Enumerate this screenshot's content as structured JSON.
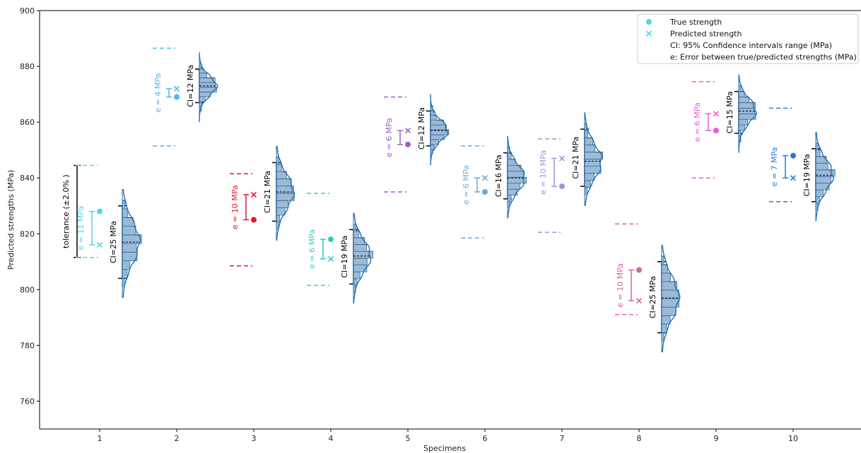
{
  "chart_data": {
    "type": "scatter",
    "xlabel": "Specimens",
    "ylabel": "Predicted strengths (MPa)",
    "ylim": [
      750,
      900
    ],
    "yticks": [
      760,
      780,
      800,
      820,
      840,
      860,
      880,
      900
    ],
    "categories": [
      "1",
      "2",
      "3",
      "4",
      "5",
      "6",
      "7",
      "8",
      "9",
      "10"
    ],
    "tolerance_label": "tolerance (±2.0% )",
    "legend": {
      "placement": "top-right",
      "entries": [
        {
          "marker": "circle",
          "label": "True strength"
        },
        {
          "marker": "x",
          "label": "Predicted strength"
        },
        {
          "marker": "none",
          "label": "CI: 95% Confidence intervals range (MPa)"
        },
        {
          "marker": "none",
          "label": "e: Error between true/predicted strengths (MPa)"
        }
      ]
    },
    "specimens": [
      {
        "x": 1,
        "color": "#4fd6ec",
        "true": 828,
        "pred": 816,
        "tol": [
          811.5,
          844.5
        ],
        "ci": [
          804,
          830
        ],
        "ci_label": "CI=25 MPa",
        "e_label": "e = 11 MPa",
        "mean": 817
      },
      {
        "x": 2,
        "color": "#4fb8ea",
        "true": 869,
        "pred": 872,
        "tol": [
          851.5,
          886.5
        ],
        "ci": [
          867,
          879
        ],
        "ci_label": "CI=12 MPa",
        "e_label": "e = 4 MPa",
        "mean": 873
      },
      {
        "x": 3,
        "color": "#e8162e",
        "true": 825,
        "pred": 834,
        "tol": [
          808.5,
          841.5
        ],
        "ci": [
          824.5,
          845.5
        ],
        "ci_label": "CI=21 MPa",
        "e_label": "e = 10 MPa",
        "mean": 835
      },
      {
        "x": 4,
        "color": "#2ecfc2",
        "true": 818,
        "pred": 811,
        "tol": [
          801.5,
          834.5
        ],
        "ci": [
          802,
          821.5
        ],
        "ci_label": "CI=19 MPa",
        "e_label": "e = 6 MPa",
        "mean": 812
      },
      {
        "x": 5,
        "color": "#a25cc9",
        "true": 852,
        "pred": 857,
        "tol": [
          835,
          869
        ],
        "ci": [
          851.5,
          864
        ],
        "ci_label": "CI=12 MPa",
        "e_label": "e = 6 MPa",
        "mean": 857
      },
      {
        "x": 6,
        "color": "#6aaad8",
        "true": 835,
        "pred": 840,
        "tol": [
          818.5,
          851.5
        ],
        "ci": [
          832.5,
          849
        ],
        "ci_label": "CI=16 MPa",
        "e_label": "e = 6 MPa",
        "mean": 840
      },
      {
        "x": 7,
        "color": "#a58fdc",
        "true": 837,
        "pred": 847,
        "tol": [
          820.5,
          854
        ],
        "ci": [
          837,
          857.5
        ],
        "ci_label": "CI=21 MPa",
        "e_label": "e = 10 MPa",
        "mean": 846
      },
      {
        "x": 8,
        "color": "#d464a8",
        "true": 807,
        "pred": 796,
        "tol": [
          791,
          823.5
        ],
        "ci": [
          784.5,
          810
        ],
        "ci_label": "CI=25 MPa",
        "e_label": "e = 10 MPa",
        "mean": 797
      },
      {
        "x": 9,
        "color": "#e85ad6",
        "true": 857,
        "pred": 863,
        "tol": [
          840,
          874.5
        ],
        "ci": [
          856,
          871
        ],
        "ci_label": "CI=15 MPa",
        "e_label": "e = 6 MPa",
        "mean": 864
      },
      {
        "x": 10,
        "color": "#1e7fd2",
        "true": 848,
        "pred": 840,
        "tol": [
          831.5,
          865
        ],
        "ci": [
          831.5,
          850.5
        ],
        "ci_label": "CI=19 MPa",
        "e_label": "e = 7 MPa",
        "mean": 841
      }
    ]
  }
}
